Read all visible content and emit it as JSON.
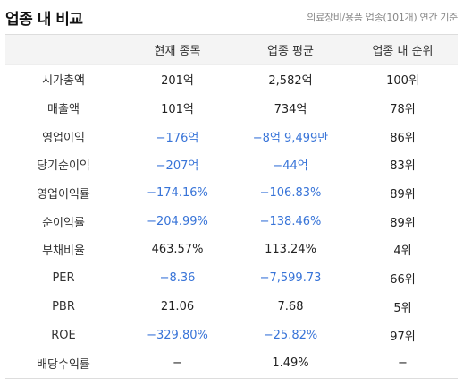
{
  "header": {
    "title": "업종 내 비교",
    "subtitle": "의료장비/용품 업종(101개) 연간 기준"
  },
  "colors": {
    "negative": "#3874d8",
    "header_bg": "#f4f4f4"
  },
  "table": {
    "columns": [
      "",
      "현재 종목",
      "업종 평균",
      "업종 내 순위"
    ],
    "rows": [
      {
        "label": "시가총액",
        "current": "201억",
        "average": "2,582억",
        "rank": "100위"
      },
      {
        "label": "매출액",
        "current": "101억",
        "average": "734억",
        "rank": "78위"
      },
      {
        "label": "영업이익",
        "current": "−176억",
        "average": "−8억 9,499만",
        "rank": "86위"
      },
      {
        "label": "당기순이익",
        "current": "−207억",
        "average": "−44억",
        "rank": "83위"
      },
      {
        "label": "영업이익률",
        "current": "−174.16%",
        "average": "−106.83%",
        "rank": "89위"
      },
      {
        "label": "순이익률",
        "current": "−204.99%",
        "average": "−138.46%",
        "rank": "89위"
      },
      {
        "label": "부채비율",
        "current": "463.57%",
        "average": "113.24%",
        "rank": "4위"
      },
      {
        "label": "PER",
        "current": "−8.36",
        "average": "−7,599.73",
        "rank": "66위"
      },
      {
        "label": "PBR",
        "current": "21.06",
        "average": "7.68",
        "rank": "5위"
      },
      {
        "label": "ROE",
        "current": "−329.80%",
        "average": "−25.82%",
        "rank": "97위"
      },
      {
        "label": "배당수익률",
        "current": "−",
        "average": "1.49%",
        "rank": "−"
      }
    ]
  }
}
